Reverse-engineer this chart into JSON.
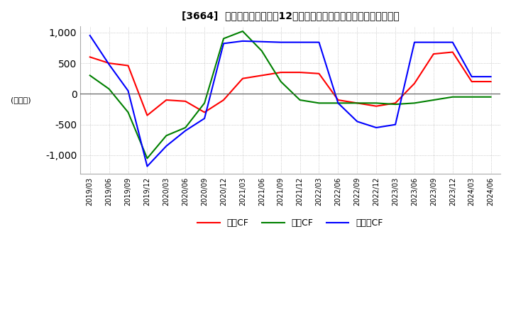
{
  "title": "[3664]  キャッシュフローの12か月移動合計の対前年同期増減額の推移",
  "ylabel": "(百万円)",
  "ylim": [
    -1300,
    1100
  ],
  "yticks": [
    -1000,
    -500,
    0,
    500,
    1000
  ],
  "dates": [
    "2019/03",
    "2019/06",
    "2019/09",
    "2019/12",
    "2020/03",
    "2020/06",
    "2020/09",
    "2020/12",
    "2021/03",
    "2021/06",
    "2021/09",
    "2021/12",
    "2022/03",
    "2022/06",
    "2022/09",
    "2022/12",
    "2023/03",
    "2023/06",
    "2023/09",
    "2023/12",
    "2024/03",
    "2024/06"
  ],
  "operating_cf": [
    600,
    500,
    460,
    -350,
    -100,
    -120,
    -300,
    -100,
    250,
    300,
    350,
    350,
    330,
    -100,
    -150,
    -200,
    -150,
    170,
    650,
    680,
    200,
    200
  ],
  "investing_cf": [
    300,
    80,
    -300,
    -1050,
    -680,
    -550,
    -150,
    900,
    1020,
    700,
    200,
    -100,
    -150,
    -150,
    -150,
    -150,
    -170,
    -150,
    -100,
    -50,
    -50,
    -50
  ],
  "free_cf": [
    950,
    480,
    50,
    -1180,
    -850,
    -600,
    -400,
    820,
    860,
    850,
    840,
    840,
    840,
    -150,
    -450,
    -550,
    -500,
    840,
    840,
    840,
    280,
    280
  ],
  "operating_color": "#ff0000",
  "investing_color": "#008000",
  "free_cf_color": "#0000ff",
  "bg_color": "#ffffff",
  "grid_color": "#aaaaaa"
}
